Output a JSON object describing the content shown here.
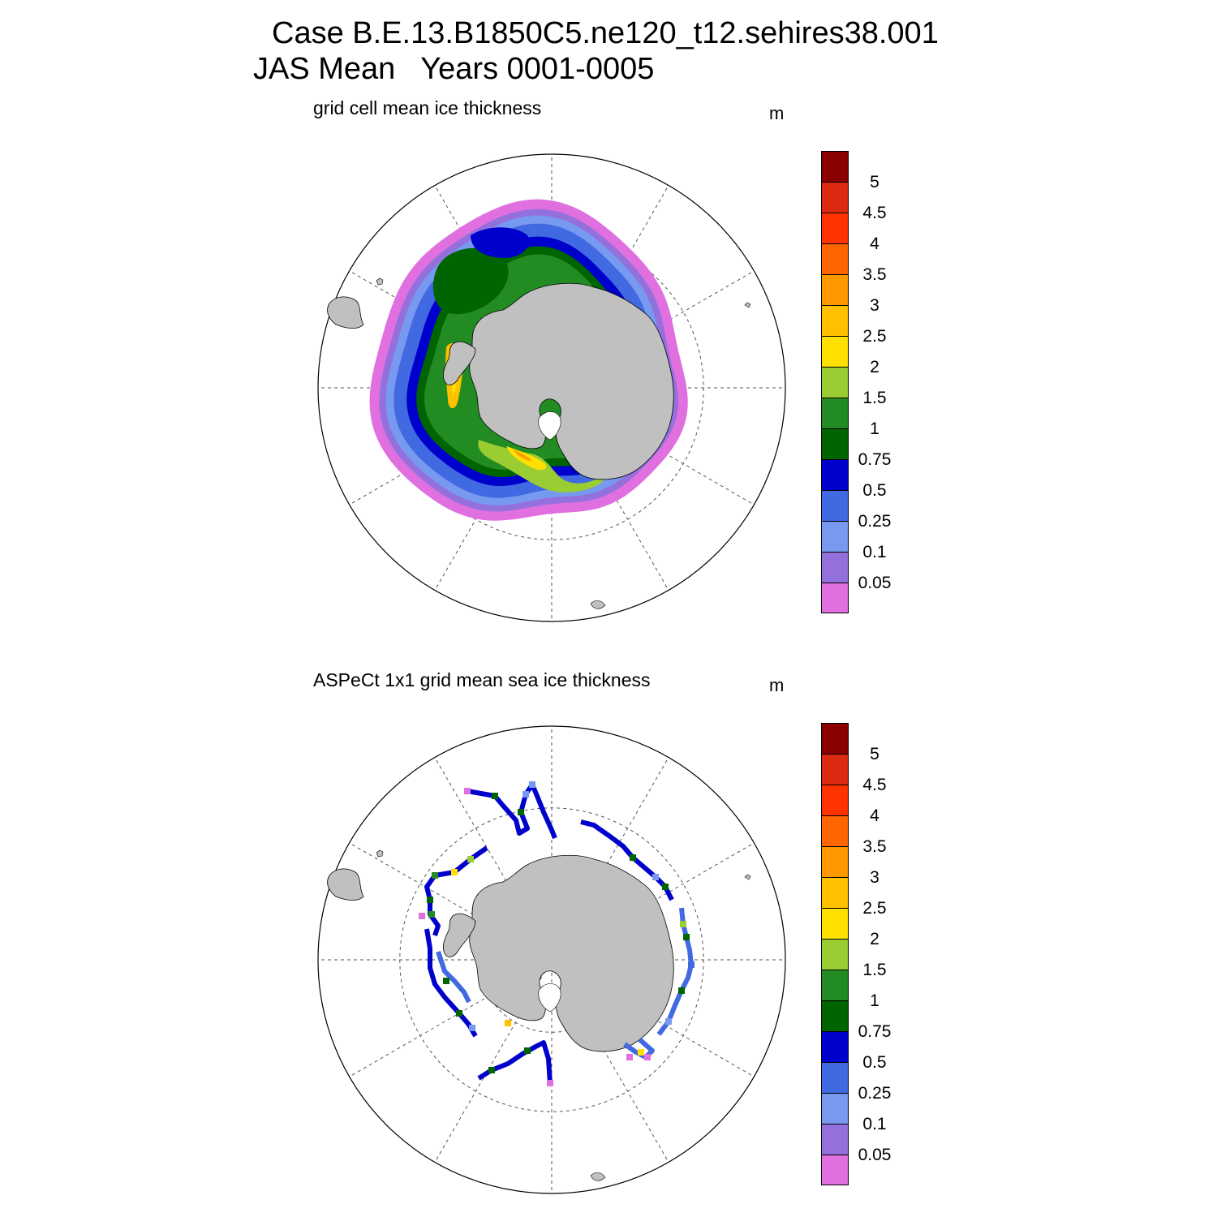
{
  "title": {
    "line1": "Case B.E.13.B1850C5.ne120_t12.sehires38.001",
    "line2": "JAS Mean   Years 0001-0005"
  },
  "panels": [
    {
      "name": "model",
      "title": "grid cell mean ice thickness",
      "units": "m",
      "data_kind": "filled-contour"
    },
    {
      "name": "aspect",
      "title": "ASPeCt 1x1 grid mean sea ice thickness",
      "units": "m",
      "data_kind": "ship-tracks"
    }
  ],
  "colorbar": {
    "colors": [
      "#8b0000",
      "#dc2a10",
      "#ff3300",
      "#ff6600",
      "#ff9900",
      "#ffc000",
      "#ffe000",
      "#9acd32",
      "#228b22",
      "#006400",
      "#0000cd",
      "#4169e1",
      "#7799f0",
      "#9370db",
      "#e070e0"
    ],
    "labels": [
      "5",
      "4.5",
      "4",
      "3.5",
      "3",
      "2.5",
      "2",
      "1.5",
      "1",
      "0.75",
      "0.5",
      "0.25",
      "0.1",
      "0.05"
    ]
  },
  "map_colors": {
    "land": "#c0c0c0",
    "ocean": "#ffffff",
    "grid": "#555555"
  }
}
